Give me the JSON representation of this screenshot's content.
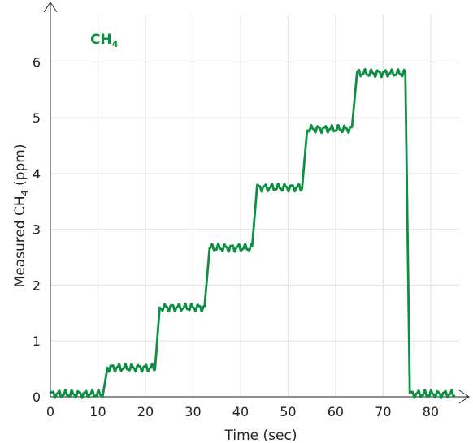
{
  "chart_data": {
    "type": "line",
    "title": "",
    "xlabel": "Time (sec)",
    "ylabel": {
      "prefix": "Measured CH",
      "sub": "4",
      "suffix": " (ppm)"
    },
    "annotation": {
      "main": "CH",
      "sub": "4"
    },
    "xlim": [
      0,
      86
    ],
    "ylim": [
      0,
      6.85
    ],
    "xticks": [
      0,
      10,
      20,
      30,
      40,
      50,
      60,
      70,
      80
    ],
    "yticks": [
      0,
      1,
      2,
      3,
      4,
      5,
      6
    ],
    "grid": true,
    "legend": "none",
    "colors": {
      "series": "#0f8f43",
      "grid": "#e4e4e4",
      "axis": "#222222"
    },
    "series": [
      {
        "steps": [
          {
            "x_start": 0,
            "x_end": 11,
            "level": 0.05
          },
          {
            "x_start": 12,
            "x_end": 22,
            "level": 0.52
          },
          {
            "x_start": 23,
            "x_end": 32.5,
            "level": 1.6
          },
          {
            "x_start": 33.5,
            "x_end": 42.5,
            "level": 2.67
          },
          {
            "x_start": 43.5,
            "x_end": 53,
            "level": 3.75
          },
          {
            "x_start": 54,
            "x_end": 63.5,
            "level": 4.8
          },
          {
            "x_start": 64.5,
            "x_end": 74.7,
            "level": 5.8
          },
          {
            "x_start": 75.6,
            "x_end": 85,
            "level": 0.05
          }
        ],
        "noise_amplitude_ppm": 0.07,
        "noise_period_sec": 1.4
      }
    ]
  }
}
